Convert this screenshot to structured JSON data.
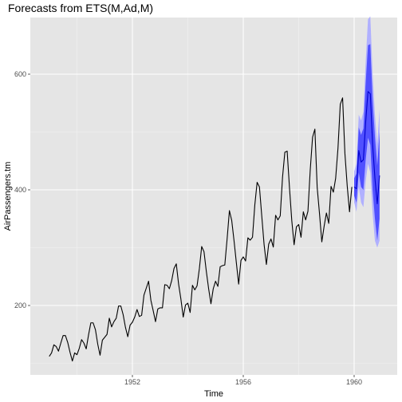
{
  "chart_data": {
    "type": "line",
    "title": "Forecasts from ETS(M,Ad,M)",
    "xlabel": "Time",
    "ylabel": "AirPassengers.tm",
    "xlim": [
      1948.8,
      1961.3
    ],
    "ylim": [
      120,
      700
    ],
    "grid": true,
    "x_ticks": [
      1952,
      1956,
      1960
    ],
    "x_tick_labels": [
      "1952",
      "1956",
      "1960"
    ],
    "y_ticks": [
      200,
      400,
      600
    ],
    "y_tick_labels": [
      "200",
      "400",
      "600"
    ],
    "observed_start": 1949.0,
    "observed_step": 0.0833333,
    "observed": [
      112,
      118,
      132,
      129,
      121,
      135,
      148,
      148,
      136,
      119,
      104,
      118,
      115,
      126,
      141,
      135,
      125,
      149,
      170,
      170,
      158,
      133,
      114,
      140,
      145,
      150,
      178,
      163,
      172,
      178,
      199,
      199,
      184,
      162,
      146,
      166,
      171,
      180,
      193,
      181,
      183,
      218,
      230,
      242,
      209,
      191,
      172,
      194,
      196,
      196,
      236,
      235,
      229,
      243,
      264,
      272,
      237,
      211,
      180,
      201,
      204,
      188,
      235,
      227,
      234,
      264,
      302,
      293,
      259,
      229,
      203,
      229,
      242,
      233,
      267,
      269,
      270,
      315,
      364,
      347,
      312,
      274,
      237,
      278,
      284,
      277,
      317,
      313,
      318,
      374,
      413,
      405,
      355,
      306,
      271,
      306,
      315,
      301,
      356,
      348,
      355,
      422,
      465,
      467,
      404,
      347,
      305,
      336,
      340,
      318,
      362,
      348,
      363,
      435,
      491,
      505,
      404,
      359,
      310,
      337,
      360,
      342,
      406,
      396,
      420,
      472,
      548,
      559,
      463,
      407,
      362,
      405
    ],
    "forecast_start": 1960.0,
    "forecast_step": 0.0833333,
    "forecast_mean": [
      405,
      402,
      468,
      448,
      452,
      518,
      570,
      566,
      478,
      420,
      376,
      425
    ],
    "forecast_lo80": [
      390,
      378,
      430,
      405,
      400,
      452,
      490,
      478,
      400,
      350,
      312,
      350
    ],
    "forecast_hi80": [
      420,
      428,
      508,
      495,
      506,
      585,
      650,
      652,
      555,
      492,
      442,
      500
    ],
    "forecast_lo95": [
      378,
      362,
      405,
      378,
      370,
      415,
      445,
      430,
      358,
      312,
      300,
      312
    ],
    "forecast_hi95": [
      432,
      445,
      530,
      520,
      535,
      622,
      695,
      700,
      600,
      530,
      478,
      540
    ],
    "colors": {
      "panel": "#e5e5e5",
      "grid_major": "#ffffff",
      "line": "#000000",
      "forecast_line": "#0000cc",
      "band80": "#5050ff",
      "band95": "#b0b0ff"
    }
  }
}
